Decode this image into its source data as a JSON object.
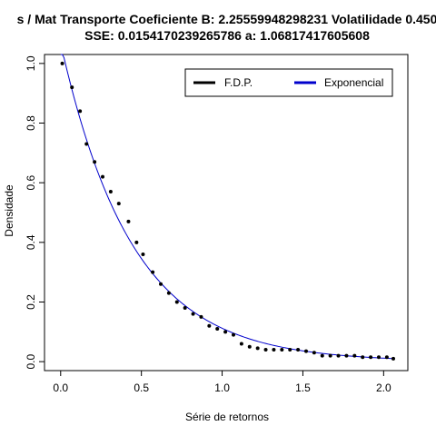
{
  "chart_data": {
    "type": "scatter",
    "title_line1": "s / Mat Transporte Coeficiente B:  2.25559948298231 Volatilidade 0.450",
    "title_line2": "SSE: 0.0154170239265786  a:  1.06817417605608",
    "xlabel": "Série de retornos",
    "ylabel": "Densidade",
    "xlim": [
      -0.1,
      2.15
    ],
    "ylim": [
      -0.03,
      1.03
    ],
    "x_ticks": [
      0.0,
      0.5,
      1.0,
      1.5,
      2.0
    ],
    "x_tick_labels": [
      "0.0",
      "0.5",
      "1.0",
      "1.5",
      "2.0"
    ],
    "y_ticks": [
      0.0,
      0.2,
      0.4,
      0.6,
      0.8,
      1.0
    ],
    "y_tick_labels": [
      "0.0",
      "0.2",
      "0.4",
      "0.6",
      "0.8",
      "1.0"
    ],
    "legend": {
      "position": "top-right",
      "entries": [
        {
          "label": "F.D.P.",
          "color": "#000000"
        },
        {
          "label": "Exponencial",
          "color": "#0000cc"
        }
      ]
    },
    "series": [
      {
        "name": "F.D.P.",
        "kind": "points",
        "color": "#000000",
        "x": [
          0.01,
          0.07,
          0.12,
          0.16,
          0.21,
          0.26,
          0.31,
          0.36,
          0.42,
          0.47,
          0.51,
          0.57,
          0.62,
          0.67,
          0.72,
          0.77,
          0.82,
          0.87,
          0.92,
          0.97,
          1.02,
          1.07,
          1.12,
          1.17,
          1.22,
          1.27,
          1.32,
          1.37,
          1.42,
          1.47,
          1.52,
          1.57,
          1.62,
          1.67,
          1.72,
          1.77,
          1.82,
          1.87,
          1.92,
          1.97,
          2.02,
          2.06
        ],
        "y": [
          1.0,
          0.92,
          0.84,
          0.73,
          0.67,
          0.62,
          0.57,
          0.53,
          0.47,
          0.4,
          0.36,
          0.3,
          0.26,
          0.23,
          0.2,
          0.18,
          0.16,
          0.15,
          0.12,
          0.11,
          0.1,
          0.09,
          0.06,
          0.05,
          0.045,
          0.04,
          0.04,
          0.04,
          0.04,
          0.04,
          0.035,
          0.03,
          0.02,
          0.02,
          0.02,
          0.02,
          0.02,
          0.015,
          0.015,
          0.015,
          0.015,
          0.01
        ]
      },
      {
        "name": "Exponencial",
        "kind": "line",
        "color": "#0000cc",
        "function": "exponential",
        "rate": 2.25559948298231,
        "amplitude": 1.06817417605608,
        "x_range": [
          0.0,
          2.06
        ]
      }
    ]
  }
}
